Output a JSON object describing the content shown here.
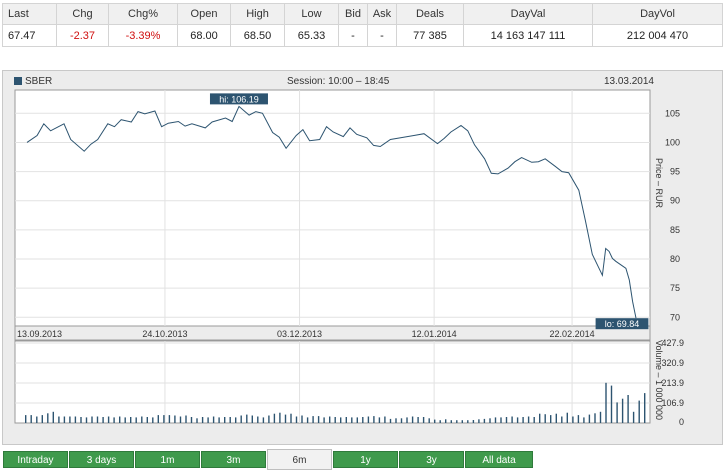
{
  "quote": {
    "headers": [
      "Last",
      "Chg",
      "Chg%",
      "Open",
      "High",
      "Low",
      "Bid",
      "Ask",
      "Deals",
      "DayVal",
      "DayVol"
    ],
    "values": [
      "67.47",
      "-2.37",
      "-3.39%",
      "68.00",
      "68.50",
      "65.33",
      "-",
      "-",
      "77 385",
      "14 163 147 111",
      "212 004 470"
    ]
  },
  "chart_header": {
    "ticker": "SBER",
    "session": "Session: 10:00 – 18:45",
    "date": "13.03.2014"
  },
  "colors": {
    "accent": "#2d5470",
    "negative": "#d01010",
    "tab_green": "#3f9a4c"
  },
  "chart_data": [
    {
      "type": "line",
      "series": [
        {
          "name": "SBER",
          "x": [
            "2013-09-13",
            "2013-09-16",
            "2013-09-18",
            "2013-09-20",
            "2013-09-24",
            "2013-09-26",
            "2013-09-30",
            "2013-10-02",
            "2013-10-04",
            "2013-10-07",
            "2013-10-09",
            "2013-10-11",
            "2013-10-14",
            "2013-10-16",
            "2013-10-18",
            "2013-10-21",
            "2013-10-23",
            "2013-10-25",
            "2013-10-28",
            "2013-10-30",
            "2013-11-01",
            "2013-11-05",
            "2013-11-07",
            "2013-11-11",
            "2013-11-13",
            "2013-11-15",
            "2013-11-18",
            "2013-11-20",
            "2013-11-22",
            "2013-11-25",
            "2013-11-27",
            "2013-11-29",
            "2013-12-02",
            "2013-12-04",
            "2013-12-06",
            "2013-12-09",
            "2013-12-11",
            "2013-12-13",
            "2013-12-16",
            "2013-12-18",
            "2013-12-20",
            "2013-12-23",
            "2013-12-25",
            "2013-12-27",
            "2013-12-30",
            "2014-01-06",
            "2014-01-09",
            "2014-01-13",
            "2014-01-15",
            "2014-01-17",
            "2014-01-20",
            "2014-01-22",
            "2014-01-24",
            "2014-01-27",
            "2014-01-29",
            "2014-01-31",
            "2014-02-03",
            "2014-02-05",
            "2014-02-07",
            "2014-02-10",
            "2014-02-12",
            "2014-02-14",
            "2014-02-17",
            "2014-02-19",
            "2014-02-21",
            "2014-02-24",
            "2014-02-26",
            "2014-02-28",
            "2014-03-03",
            "2014-03-04",
            "2014-03-05",
            "2014-03-06",
            "2014-03-07",
            "2014-03-10",
            "2014-03-11",
            "2014-03-12",
            "2014-03-13"
          ],
          "y": [
            100.0,
            101.2,
            103.2,
            102.0,
            103.2,
            100.5,
            98.5,
            99.7,
            100.5,
            103.2,
            102.7,
            103.9,
            103.5,
            105.3,
            104.9,
            105.4,
            102.7,
            103.3,
            103.6,
            102.8,
            103.2,
            102.5,
            103.5,
            104.2,
            103.6,
            106.19,
            104.7,
            105.3,
            105.0,
            101.7,
            100.9,
            99.0,
            101.2,
            102.2,
            100.3,
            100.5,
            102.7,
            101.8,
            101.0,
            102.5,
            101.4,
            100.8,
            99.5,
            99.3,
            100.5,
            101.2,
            101.5,
            99.8,
            100.7,
            101.8,
            102.9,
            102.0,
            99.6,
            97.2,
            94.7,
            94.6,
            95.6,
            96.7,
            97.4,
            96.6,
            96.7,
            97.2,
            95.9,
            95.0,
            94.8,
            91.8,
            86.5,
            80.8,
            77.2,
            81.8,
            81.3,
            80.1,
            79.6,
            78.4,
            76.4,
            72.7,
            69.84
          ]
        }
      ],
      "y_ticks": [
        105,
        100,
        95,
        90,
        85,
        80,
        75,
        70
      ],
      "ylim": [
        68.5,
        109
      ],
      "ylabel": "Price – RUR",
      "x_ticks": [
        "13.09.2013",
        "24.10.2013",
        "03.12.2013",
        "12.01.2014",
        "22.02.2014"
      ],
      "annotations": {
        "hi": "hi: 106.19",
        "lo": "lo: 69.84"
      },
      "grid": true
    },
    {
      "type": "bar",
      "series": [
        {
          "values": [
            42,
            42,
            35,
            42,
            52,
            60,
            35,
            35,
            35,
            35,
            32,
            30,
            35,
            35,
            32,
            35,
            30,
            35,
            30,
            32,
            30,
            35,
            32,
            30,
            42,
            42,
            42,
            40,
            35,
            40,
            32,
            25,
            32,
            30,
            35,
            30,
            32,
            32,
            30,
            40,
            45,
            40,
            35,
            30,
            40,
            50,
            55,
            45,
            50,
            35,
            40,
            30,
            37,
            37,
            30,
            35,
            32,
            30,
            32,
            30,
            30,
            32,
            35,
            37,
            30,
            35,
            22,
            25,
            25,
            30,
            35,
            32,
            32,
            25,
            18,
            15,
            20,
            15,
            15,
            15,
            15,
            16,
            20,
            22,
            25,
            30,
            30,
            32,
            35,
            30,
            32,
            35,
            32,
            50,
            47,
            42,
            50,
            35,
            55,
            35,
            42,
            30,
            45,
            52,
            60,
            215,
            200,
            110,
            130,
            150,
            60,
            120,
            160
          ]
        }
      ],
      "y_ticks": [
        "427.9",
        "320.9",
        "213.9",
        "106.9",
        "0"
      ],
      "ylim": [
        0,
        427.9
      ],
      "ylabel": "Volume – 1 000 000",
      "grid": true
    }
  ],
  "tabs": [
    {
      "label": "Intraday",
      "active": false
    },
    {
      "label": "3 days",
      "active": false
    },
    {
      "label": "1m",
      "active": false
    },
    {
      "label": "3m",
      "active": false
    },
    {
      "label": "6m",
      "active": true
    },
    {
      "label": "1y",
      "active": false
    },
    {
      "label": "3y",
      "active": false
    },
    {
      "label": "All data",
      "active": false
    }
  ]
}
